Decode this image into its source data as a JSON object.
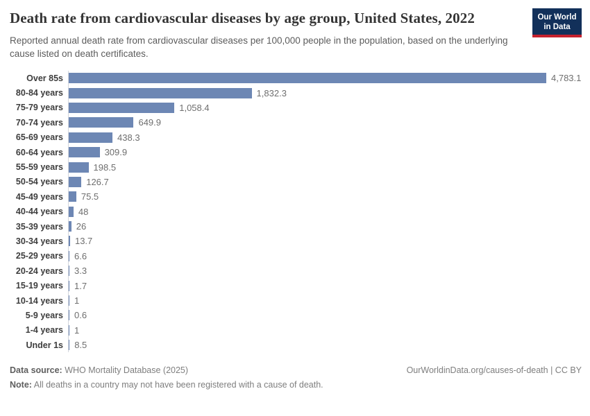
{
  "header": {
    "title": "Death rate from cardiovascular diseases by age group, United States, 2022",
    "subtitle": "Reported annual death rate from cardiovascular diseases per 100,000 people in the population, based on the underlying cause listed on death certificates.",
    "logo": {
      "line1": "Our World",
      "line2": "in Data"
    }
  },
  "chart_data": {
    "type": "bar",
    "orientation": "horizontal",
    "title": "Death rate from cardiovascular diseases by age group, United States, 2022",
    "xlabel": "",
    "ylabel": "",
    "xlim": [
      0,
      4783.1
    ],
    "grid": false,
    "legend": false,
    "bar_color": "#6d87b4",
    "categories": [
      "Over 85s",
      "80-84 years",
      "75-79 years",
      "70-74 years",
      "65-69 years",
      "60-64 years",
      "55-59 years",
      "50-54 years",
      "45-49 years",
      "40-44 years",
      "35-39 years",
      "30-34 years",
      "25-29 years",
      "20-24 years",
      "15-19 years",
      "10-14 years",
      "5-9 years",
      "1-4 years",
      "Under 1s"
    ],
    "values": [
      4783.1,
      1832.3,
      1058.4,
      649.9,
      438.3,
      309.9,
      198.5,
      126.7,
      75.5,
      48,
      26,
      13.7,
      6.6,
      3.3,
      1.7,
      1,
      0.6,
      1,
      8.5
    ],
    "value_labels": [
      "4,783.1",
      "1,832.3",
      "1,058.4",
      "649.9",
      "438.3",
      "309.9",
      "198.5",
      "126.7",
      "75.5",
      "48",
      "26",
      "13.7",
      "6.6",
      "3.3",
      "1.7",
      "1",
      "0.6",
      "1",
      "8.5"
    ]
  },
  "footer": {
    "data_source_label": "Data source:",
    "data_source_text": " WHO Mortality Database (2025)",
    "note_label": "Note:",
    "note_text": " All deaths in a country may not have been registered with a cause of death.",
    "link": "OurWorldinData.org/causes-of-death | CC BY"
  },
  "colors": {
    "bar": "#6d87b4",
    "logo_navy": "#12305a",
    "logo_red": "#c5212e",
    "axis_line": "#d4d7dd",
    "title_text": "#343434",
    "subtitle_text": "#5c5c5c",
    "value_text": "#6e6e6e"
  }
}
